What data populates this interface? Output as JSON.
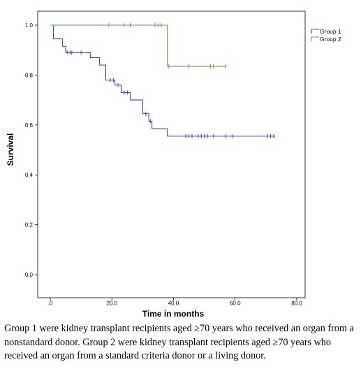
{
  "chart_data": {
    "type": "line",
    "title": "",
    "xlabel": "Time in months",
    "ylabel": "Survival",
    "xlim": [
      0,
      80
    ],
    "ylim": [
      0,
      1.0
    ],
    "x_ticks": [
      {
        "value": 0,
        "label": ".0"
      },
      {
        "value": 20,
        "label": "20.0"
      },
      {
        "value": 40,
        "label": "40.0"
      },
      {
        "value": 60,
        "label": "60.0"
      },
      {
        "value": 80,
        "label": "80.0"
      }
    ],
    "y_ticks": [
      {
        "value": 0,
        "label": "0.0"
      },
      {
        "value": 0.2,
        "label": "0.2"
      },
      {
        "value": 0.4,
        "label": "0.4"
      },
      {
        "value": 0.6,
        "label": "0.6"
      },
      {
        "value": 0.8,
        "label": "0.8"
      },
      {
        "value": 1.0,
        "label": "1.0"
      }
    ],
    "grid": false,
    "legend_position": "top-right",
    "series": [
      {
        "name": "Group 1",
        "color": "#3b4aa8",
        "steps": [
          [
            0,
            1.0
          ],
          [
            1,
            0.945
          ],
          [
            4,
            0.915
          ],
          [
            5,
            0.89
          ],
          [
            13,
            0.87
          ],
          [
            16,
            0.84
          ],
          [
            18,
            0.78
          ],
          [
            21,
            0.76
          ],
          [
            23,
            0.73
          ],
          [
            26,
            0.7
          ],
          [
            30,
            0.645
          ],
          [
            32,
            0.615
          ],
          [
            33,
            0.585
          ],
          [
            38,
            0.555
          ],
          [
            73,
            0.555
          ]
        ],
        "censored": [
          [
            5.5,
            0.89
          ],
          [
            6.5,
            0.89
          ],
          [
            7,
            0.89
          ],
          [
            10,
            0.89
          ],
          [
            19.5,
            0.78
          ],
          [
            20.5,
            0.78
          ],
          [
            22,
            0.76
          ],
          [
            24,
            0.73
          ],
          [
            25,
            0.73
          ],
          [
            31,
            0.645
          ],
          [
            32.5,
            0.615
          ],
          [
            44,
            0.555
          ],
          [
            45,
            0.555
          ],
          [
            46,
            0.555
          ],
          [
            48,
            0.555
          ],
          [
            49,
            0.555
          ],
          [
            50,
            0.555
          ],
          [
            51,
            0.555
          ],
          [
            53,
            0.555
          ],
          [
            57,
            0.555
          ],
          [
            59,
            0.555
          ],
          [
            70.5,
            0.555
          ],
          [
            71.5,
            0.555
          ],
          [
            72.5,
            0.555
          ]
        ]
      },
      {
        "name": "Group 2",
        "color": "#5aa24a",
        "steps": [
          [
            0,
            1.0
          ],
          [
            38,
            1.0
          ],
          [
            38,
            0.835
          ],
          [
            57,
            0.835
          ]
        ],
        "censored": [
          [
            19,
            1.0
          ],
          [
            24,
            1.0
          ],
          [
            26,
            1.0
          ],
          [
            34,
            1.0
          ],
          [
            35,
            1.0
          ],
          [
            36,
            1.0
          ],
          [
            38.5,
            0.835
          ],
          [
            45,
            0.835
          ],
          [
            52,
            0.835
          ],
          [
            53,
            0.835
          ],
          [
            57,
            0.835
          ]
        ]
      }
    ]
  },
  "caption": "Group 1 were kidney transplant recipients aged ≥70 years who received an organ from a nonstandard donor. Group 2 were kidney transplant recipients aged ≥70 years who received an organ from a standard criteria donor or a living donor."
}
